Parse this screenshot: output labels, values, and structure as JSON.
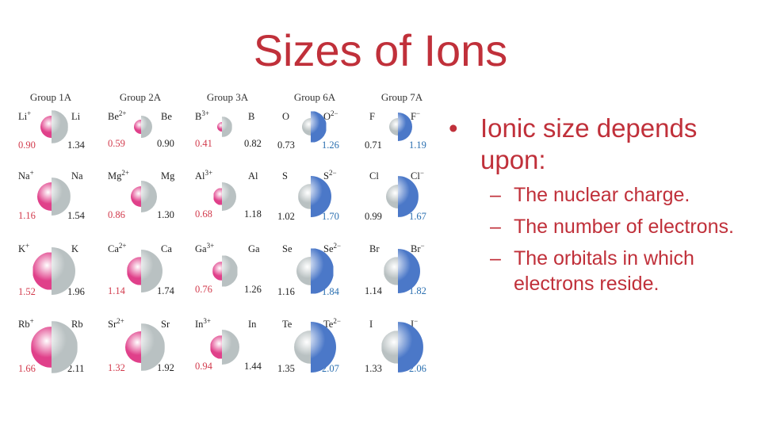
{
  "slide": {
    "title": "Sizes of Ions",
    "bullet": "Ionic size depends upon:",
    "subbullets": [
      "The nuclear charge.",
      "The number of electrons.",
      "The orbitals in which electrons reside."
    ]
  },
  "colors": {
    "title": "#c0303a",
    "cation": "#e0408a",
    "anion": "#4b78c8",
    "atom": "#b9c1c2",
    "cation_value": "#d23a4c",
    "anion_value": "#2a6fb0"
  },
  "figure": {
    "columns": [
      {
        "group": "Group 1A",
        "type": "cation",
        "rows": [
          {
            "ion": "Li",
            "charge": "+",
            "atom": "Li",
            "ion_radius": "0.90",
            "atom_radius": "1.34"
          },
          {
            "ion": "Na",
            "charge": "+",
            "atom": "Na",
            "ion_radius": "1.16",
            "atom_radius": "1.54"
          },
          {
            "ion": "K",
            "charge": "+",
            "atom": "K",
            "ion_radius": "1.52",
            "atom_radius": "1.96"
          },
          {
            "ion": "Rb",
            "charge": "+",
            "atom": "Rb",
            "ion_radius": "1.66",
            "atom_radius": "2.11"
          }
        ]
      },
      {
        "group": "Group 2A",
        "type": "cation",
        "rows": [
          {
            "ion": "Be",
            "charge": "2+",
            "atom": "Be",
            "ion_radius": "0.59",
            "atom_radius": "0.90"
          },
          {
            "ion": "Mg",
            "charge": "2+",
            "atom": "Mg",
            "ion_radius": "0.86",
            "atom_radius": "1.30"
          },
          {
            "ion": "Ca",
            "charge": "2+",
            "atom": "Ca",
            "ion_radius": "1.14",
            "atom_radius": "1.74"
          },
          {
            "ion": "Sr",
            "charge": "2+",
            "atom": "Sr",
            "ion_radius": "1.32",
            "atom_radius": "1.92"
          }
        ]
      },
      {
        "group": "Group 3A",
        "type": "cation",
        "rows": [
          {
            "ion": "B",
            "charge": "3+",
            "atom": "B",
            "ion_radius": "0.41",
            "atom_radius": "0.82"
          },
          {
            "ion": "Al",
            "charge": "3+",
            "atom": "Al",
            "ion_radius": "0.68",
            "atom_radius": "1.18"
          },
          {
            "ion": "Ga",
            "charge": "3+",
            "atom": "Ga",
            "ion_radius": "0.76",
            "atom_radius": "1.26"
          },
          {
            "ion": "In",
            "charge": "3+",
            "atom": "In",
            "ion_radius": "0.94",
            "atom_radius": "1.44"
          }
        ]
      },
      {
        "group": "Group 6A",
        "type": "anion",
        "rows": [
          {
            "atom": "O",
            "ion": "O",
            "charge": "2−",
            "atom_radius": "0.73",
            "ion_radius": "1.26"
          },
          {
            "atom": "S",
            "ion": "S",
            "charge": "2−",
            "atom_radius": "1.02",
            "ion_radius": "1.70"
          },
          {
            "atom": "Se",
            "ion": "Se",
            "charge": "2−",
            "atom_radius": "1.16",
            "ion_radius": "1.84"
          },
          {
            "atom": "Te",
            "ion": "Te",
            "charge": "2−",
            "atom_radius": "1.35",
            "ion_radius": "2.07"
          }
        ]
      },
      {
        "group": "Group 7A",
        "type": "anion",
        "rows": [
          {
            "atom": "F",
            "ion": "F",
            "charge": "−",
            "atom_radius": "0.71",
            "ion_radius": "1.19"
          },
          {
            "atom": "Cl",
            "ion": "Cl",
            "charge": "−",
            "atom_radius": "0.99",
            "ion_radius": "1.67"
          },
          {
            "atom": "Br",
            "ion": "Br",
            "charge": "−",
            "atom_radius": "1.14",
            "ion_radius": "1.82"
          },
          {
            "atom": "I",
            "ion": "I",
            "charge": "−",
            "atom_radius": "1.33",
            "ion_radius": "2.06"
          }
        ]
      }
    ]
  }
}
